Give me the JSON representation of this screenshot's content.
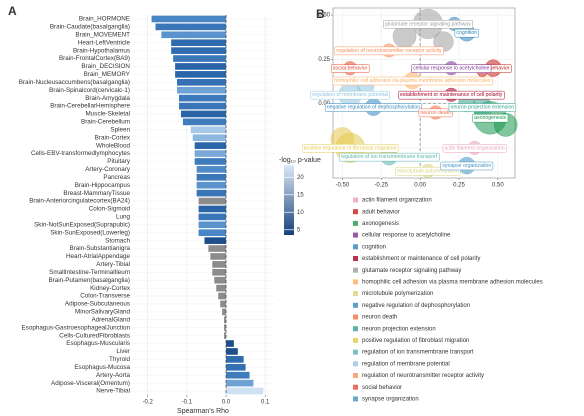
{
  "chart_data": [
    {
      "type": "bar",
      "panel": "A",
      "orientation": "horizontal",
      "xlabel": "Spearman's Rho",
      "categories": [
        "Brain_HORMONE",
        "Brain-Caudate(basalganglia)",
        "Brain_MOVEMENT",
        "Heart-LeftVentricle",
        "Brain-Hypothalamus",
        "Brain-FrontalCortex(BA9)",
        "Brain_DECISION",
        "Brain_MEMORY",
        "Brain-Nucleusaccumbens(basalganglia)",
        "Brain-Spinalcord(cervicalc-1)",
        "Brain-Amygdala",
        "Brain-CerebellarHemisphere",
        "Muscle-Skeletal",
        "Brain-Cerebellum",
        "Spleen",
        "Brain-Cortex",
        "WholeBlood",
        "Cells-EBV-transformedlymphocytes",
        "Pituitary",
        "Artery-Coronary",
        "Pancreas",
        "Brain-Hippocampus",
        "Breast-MammaryTissue",
        "Brain-Anteriorcingulatecortex(BA24)",
        "Colon-Sigmoid",
        "Lung",
        "Skin-NotSunExposed(Suprapubic)",
        "Skin-SunExposed(Lowerleg)",
        "Stomach",
        "Brain-Substantianigra",
        "Heart-AtrialAppendage",
        "Artery-Tibial",
        "SmallIntestine-TerminalIleum",
        "Brain-Putamen(basalganglia)",
        "Kidney-Cortex",
        "Colon-Transverse",
        "Adipose-Subcutaneous",
        "MinorSalivaryGland",
        "AdrenalGland",
        "Esophagus-GastroesophagealJunction",
        "Cells-CulturedFibroblasts",
        "Esophagus-Muscularis",
        "Liver",
        "Thyroid",
        "Esophagus-Mucosa",
        "Artery-Aorta",
        "Adipose-Visceral(Omentum)",
        "Nerve-Tibial"
      ],
      "values": [
        -0.19,
        -0.18,
        -0.165,
        -0.14,
        -0.14,
        -0.135,
        -0.13,
        -0.13,
        -0.125,
        -0.125,
        -0.12,
        -0.12,
        -0.115,
        -0.11,
        -0.09,
        -0.085,
        -0.08,
        -0.08,
        -0.08,
        -0.075,
        -0.075,
        -0.075,
        -0.075,
        -0.07,
        -0.07,
        -0.07,
        -0.07,
        -0.07,
        -0.055,
        -0.045,
        -0.04,
        -0.035,
        -0.035,
        -0.03,
        -0.025,
        -0.02,
        -0.015,
        -0.01,
        -0.005,
        -0.005,
        -0.005,
        0.02,
        0.03,
        0.045,
        0.05,
        0.06,
        0.07,
        0.095
      ],
      "colors": [
        "#4a86c5",
        "#3a77b8",
        "#5a93cc",
        "#2e6aae",
        "#2f6cb0",
        "#3b78ba",
        "#2a64a8",
        "#2c66aa",
        "#3470b3",
        "#6ea1d4",
        "#3c79ba",
        "#3a76b7",
        "#2a63a6",
        "#3f7cbd",
        "#a7c8e8",
        "#8fb8e0",
        "#2b65a9",
        "#7aa9d9",
        "#3f7cbd",
        "#4f8bc8",
        "#3b78ba",
        "#5a93cc",
        "#3a76b7",
        "#8c8c8c",
        "#2a63a6",
        "#3a76b7",
        "#5a93cc",
        "#4a86c5",
        "#1f4e8c",
        "#8c8c8c",
        "#8c8c8c",
        "#8c8c8c",
        "#8c8c8c",
        "#8c8c8c",
        "#8c8c8c",
        "#8c8c8c",
        "#8c8c8c",
        "#8c8c8c",
        "#8c8c8c",
        "#8c8c8c",
        "#8c8c8c",
        "#1f4e8c",
        "#1f4e8c",
        "#2e6aae",
        "#3470b3",
        "#3f7cbd",
        "#6ea1d4",
        "#cfe2f3"
      ],
      "xlim": [
        -0.24,
        0.125
      ],
      "xticks": [
        -0.2,
        -0.1,
        {
          "value": 0,
          "label": "0.0"
        },
        0.1
      ],
      "grid": true,
      "colorbar": {
        "title": "-log₁₀ p-value",
        "lim": [
          3.5,
          23.5
        ],
        "ticks": [
          5,
          10,
          15,
          20
        ],
        "colors": [
          "#163f7a",
          "#dbe9f6"
        ]
      }
    },
    {
      "type": "scatter",
      "panel": "B",
      "xlim": [
        -0.56,
        0.61
      ],
      "ylim": [
        -0.42,
        0.54
      ],
      "xticks": [
        {
          "value": -0.5,
          "label": "-0.50"
        },
        -0.25,
        {
          "value": 0,
          "label": "0.00"
        },
        0.25,
        {
          "value": 0.5,
          "label": "0.50"
        }
      ],
      "yticks": [
        {
          "value": 0.5,
          "label": "0.50"
        },
        0.25,
        {
          "value": 0,
          "label": "0.00"
        },
        -0.25
      ],
      "grid": true,
      "series": [
        {
          "name": "actin filament organization",
          "color": "#e8a0b8",
          "x": [
            0.35
          ],
          "y": [
            -0.25
          ],
          "sizes": [
            3
          ]
        },
        {
          "name": "adult behavior",
          "color": "#c51b1b",
          "x": [
            0.47,
            0.4
          ],
          "y": [
            0.2,
            0.18
          ],
          "sizes": [
            4,
            2
          ]
        },
        {
          "name": "axonogenesis",
          "color": "#1a9850",
          "x": [
            0.45,
            0.55
          ],
          "y": [
            -0.08,
            -0.12
          ],
          "sizes": [
            9,
            6
          ]
        },
        {
          "name": "cellular response to acetylcholine",
          "color": "#7b3294",
          "x": [
            0.2
          ],
          "y": [
            0.2
          ],
          "sizes": [
            3
          ]
        },
        {
          "name": "cognition",
          "color": "#2b83ba",
          "x": [
            0.3,
            0.22
          ],
          "y": [
            0.4,
            0.45
          ],
          "sizes": [
            4,
            3
          ]
        },
        {
          "name": "establishment or maintenance of cell polarity",
          "color": "#a50026",
          "x": [
            0.2
          ],
          "y": [
            0.05
          ],
          "sizes": [
            3
          ]
        },
        {
          "name": "glutamate receptor signaling pathway",
          "color": "#9e9e9e",
          "x": [
            0.05,
            -0.1,
            0.15
          ],
          "y": [
            0.45,
            0.38,
            0.35
          ],
          "sizes": [
            8,
            6,
            5
          ]
        },
        {
          "name": "homophilic cell adhesion via plasma membrane adhesion molecules",
          "color": "#fdae61",
          "x": [
            -0.05
          ],
          "y": [
            0.13
          ],
          "sizes": [
            4
          ]
        },
        {
          "name": "microtubule polymerization",
          "color": "#d9d27a",
          "x": [
            0.05
          ],
          "y": [
            -0.38
          ],
          "sizes": [
            3
          ]
        },
        {
          "name": "negative regulation of dephosphorylation",
          "color": "#3288bd",
          "x": [
            -0.3
          ],
          "y": [
            -0.02
          ],
          "sizes": [
            4
          ]
        },
        {
          "name": "neuron death",
          "color": "#f46d43",
          "x": [
            0.1
          ],
          "y": [
            -0.05
          ],
          "sizes": [
            3
          ]
        },
        {
          "name": "neuron projection extension",
          "color": "#35a08e",
          "x": [
            0.4,
            0.3
          ],
          "y": [
            -0.02,
            0.0
          ],
          "sizes": [
            5,
            4
          ]
        },
        {
          "name": "positive regulation of fibroblast migration",
          "color": "#e6c84f",
          "x": [
            -0.45,
            -0.5
          ],
          "y": [
            -0.25,
            -0.2
          ],
          "sizes": [
            8,
            6
          ]
        },
        {
          "name": "regulation of ion transmembrane transport",
          "color": "#5ab4ac",
          "x": [
            -0.2
          ],
          "y": [
            -0.3
          ],
          "sizes": [
            4
          ]
        },
        {
          "name": "regulation of membrane potential",
          "color": "#92c5de",
          "x": [
            -0.45,
            -0.35
          ],
          "y": [
            0.05,
            0.1
          ],
          "sizes": [
            6,
            4
          ]
        },
        {
          "name": "regulation of neurotransmitter receptor activity",
          "color": "#fc8d59",
          "x": [
            -0.2
          ],
          "y": [
            0.3
          ],
          "sizes": [
            3
          ]
        },
        {
          "name": "social behavior",
          "color": "#e34a33",
          "x": [
            -0.45
          ],
          "y": [
            0.2
          ],
          "sizes": [
            3
          ]
        },
        {
          "name": "synapse organization",
          "color": "#4393c3",
          "x": [
            0.3
          ],
          "y": [
            -0.35
          ],
          "sizes": [
            4
          ]
        }
      ]
    }
  ]
}
